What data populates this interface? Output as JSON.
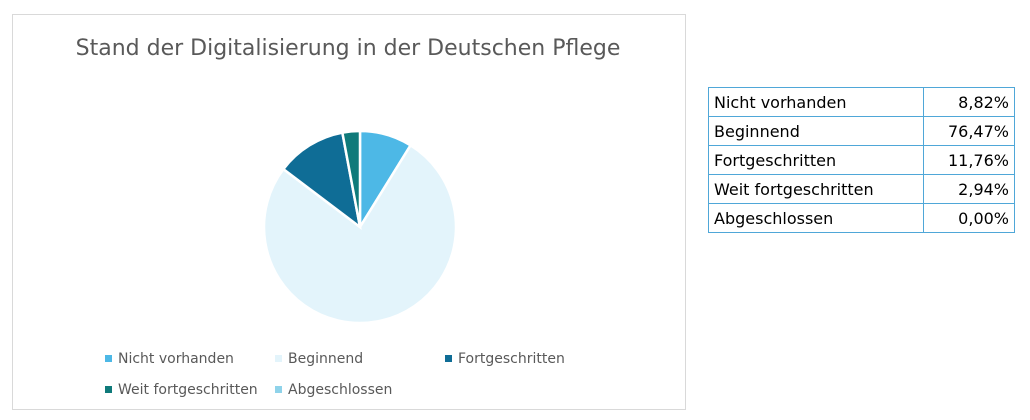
{
  "chart_data": {
    "type": "pie",
    "title": "Stand der Digitalisierung in der Deutschen Pflege",
    "categories": [
      "Nicht vorhanden",
      "Beginnend",
      "Fortgeschritten",
      "Weit fortgeschritten",
      "Abgeschlossen"
    ],
    "values": [
      8.82,
      76.47,
      11.76,
      2.94,
      0.0
    ],
    "value_labels": [
      "8,82%",
      "76,47%",
      "11,76%",
      "2,94%",
      "0,00%"
    ],
    "unit": "%",
    "legend_placement": "bottom",
    "colors": [
      "#4db8e6",
      "#e3f4fb",
      "#0f6d96",
      "#0f7a7a",
      "#8fd3ea"
    ]
  }
}
